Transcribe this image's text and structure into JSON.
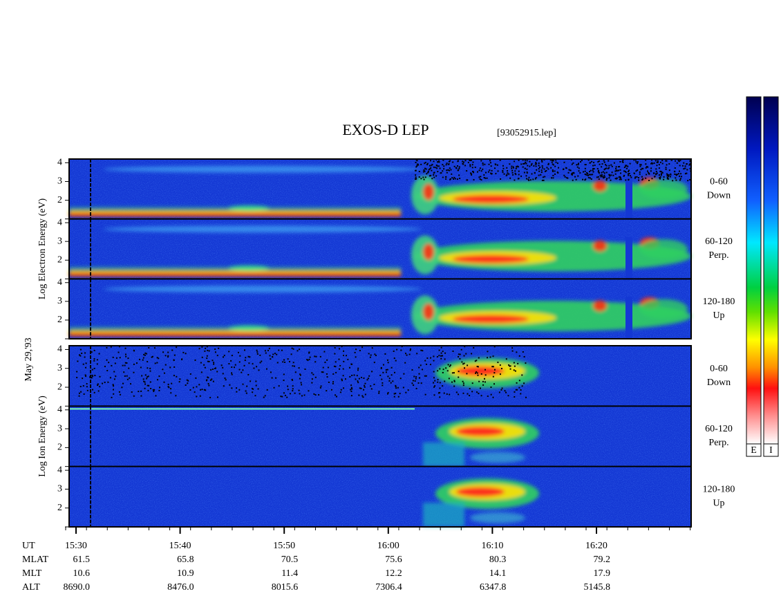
{
  "chart_data": {
    "type": "spectrogram",
    "title": "EXOS-D LEP",
    "subtitle": "[93052915.lep]",
    "date_label": "May 29,'93",
    "ylim": [
      1,
      4.2
    ],
    "yticks": [
      2,
      3,
      4
    ],
    "groups": [
      {
        "ylabel": "Log Electron Energy (eV)",
        "panels": [
          {
            "angle": "0-60",
            "direction": "Down"
          },
          {
            "angle": "60-120",
            "direction": "Perp."
          },
          {
            "angle": "120-180",
            "direction": "Up"
          }
        ]
      },
      {
        "ylabel": "Log Ion Energy (eV)",
        "panels": [
          {
            "angle": "0-60",
            "direction": "Down"
          },
          {
            "angle": "60-120",
            "direction": "Perp."
          },
          {
            "angle": "120-180",
            "direction": "Up"
          }
        ]
      }
    ],
    "colorbar_labels": [
      "E",
      "I"
    ],
    "ephemeris": {
      "UT": [
        "15:30",
        "15:40",
        "15:50",
        "16:00",
        "16:10",
        "16:20"
      ],
      "rows": [
        {
          "name": "MLAT",
          "values": [
            "61.5",
            "65.8",
            "70.5",
            "75.6",
            "80.3",
            "79.2"
          ]
        },
        {
          "name": "MLT",
          "values": [
            "10.6",
            "10.9",
            "11.4",
            "12.2",
            "14.1",
            "17.9"
          ]
        },
        {
          "name": "ALT",
          "values": [
            "8690.0",
            "8476.0",
            "8015.6",
            "7306.4",
            "6347.8",
            "5145.8"
          ]
        }
      ],
      "ut_name": "UT"
    }
  }
}
